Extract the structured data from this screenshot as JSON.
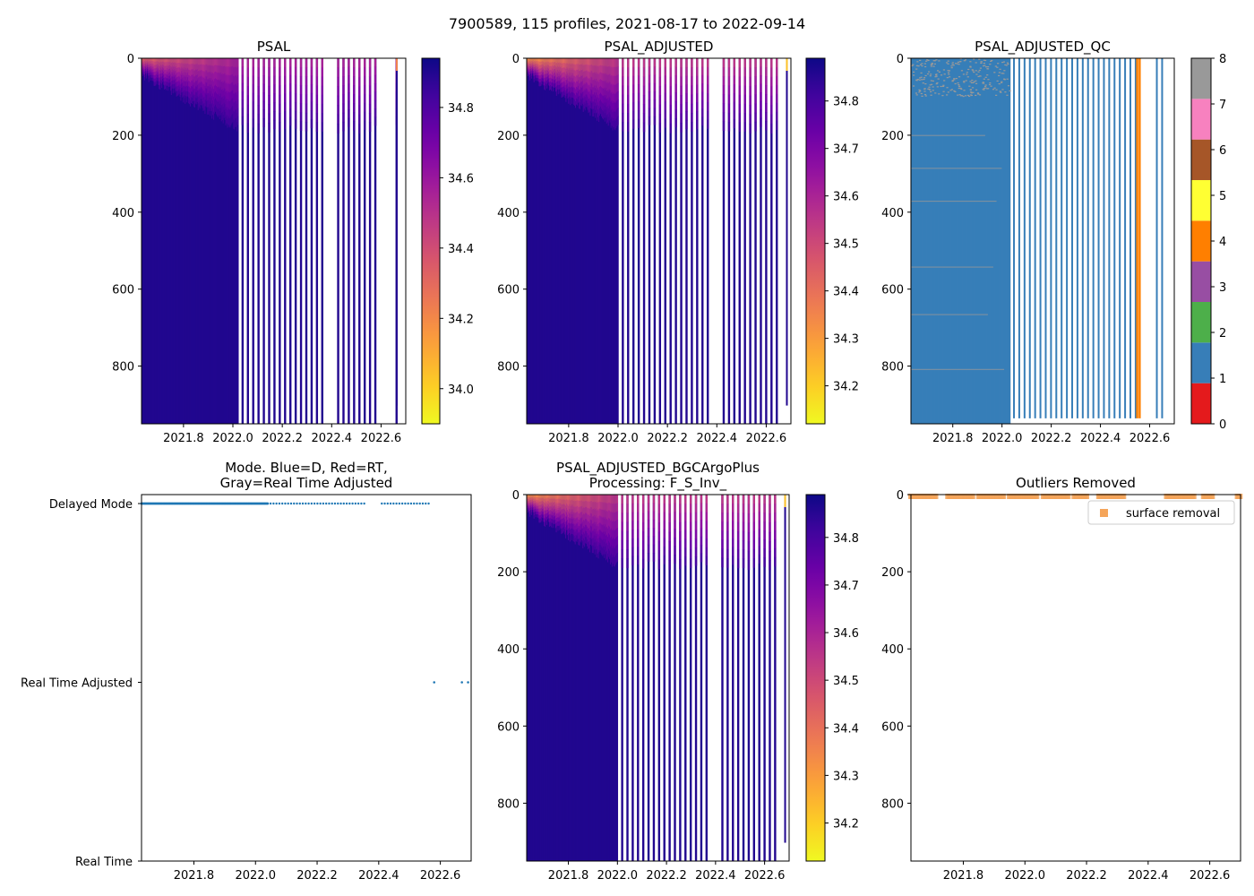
{
  "figure": {
    "suptitle": "7900589, 115 profiles, 2021-08-17 to 2022-09-14"
  },
  "colors": {
    "plasma": [
      "#0d0887",
      "#46039f",
      "#7201a8",
      "#9c179e",
      "#bd3786",
      "#d8576b",
      "#ed7953",
      "#fb9f3a",
      "#fdca26",
      "#f0f921"
    ],
    "qc": [
      "#e41a1c",
      "#377eb8",
      "#4daf4a",
      "#984ea3",
      "#ff7f00",
      "#ffff33",
      "#a65628",
      "#f781bf",
      "#999999"
    ],
    "mode_points": "#1f77b4",
    "outlier_marker": "#f5a55a",
    "qc4_stripe": "#ff7f00"
  },
  "chart_data": [
    {
      "id": "psal",
      "type": "heatmap",
      "title": "PSAL",
      "colormap": "plasma_r",
      "xlim": [
        2021.63,
        2022.7
      ],
      "ylim": [
        950,
        0
      ],
      "xticks": [
        2021.8,
        2022.0,
        2022.2,
        2022.4,
        2022.6
      ],
      "xtick_labels": [
        "2021.8",
        "2022.0",
        "2022.2",
        "2022.4",
        "2022.6"
      ],
      "yticks": [
        0,
        200,
        400,
        600,
        800
      ],
      "ytick_labels": [
        "0",
        "200",
        "400",
        "600",
        "800"
      ],
      "clim": [
        33.9,
        34.94
      ],
      "colorbar_ticks": [
        34.0,
        34.2,
        34.4,
        34.6,
        34.8
      ],
      "colorbar_labels": [
        "34.0",
        "34.2",
        "34.4",
        "34.6",
        "34.8"
      ],
      "dense_until": 2022.02,
      "missing_ranges": [
        [
          2022.36,
          2022.42
        ],
        [
          2022.59,
          2022.65
        ]
      ],
      "shallow_profile_x": 2022.66,
      "surface_values": {
        "early": 34.32,
        "late": 34.55
      },
      "deep_value": 34.9
    },
    {
      "id": "psal_adj",
      "type": "heatmap",
      "title": "PSAL_ADJUSTED",
      "colormap": "plasma_r",
      "xlim": [
        2021.63,
        2022.7
      ],
      "ylim": [
        950,
        0
      ],
      "xticks": [
        2021.8,
        2022.0,
        2022.2,
        2022.4,
        2022.6
      ],
      "xtick_labels": [
        "2021.8",
        "2022.0",
        "2022.2",
        "2022.4",
        "2022.6"
      ],
      "yticks": [
        0,
        200,
        400,
        600,
        800
      ],
      "ytick_labels": [
        "0",
        "200",
        "400",
        "600",
        "800"
      ],
      "clim": [
        34.12,
        34.89
      ],
      "colorbar_ticks": [
        34.2,
        34.3,
        34.4,
        34.5,
        34.6,
        34.7,
        34.8
      ],
      "colorbar_labels": [
        "34.2",
        "34.3",
        "34.4",
        "34.5",
        "34.6",
        "34.7",
        "34.8"
      ],
      "dense_until": 2022.0,
      "missing_ranges": [
        [
          2022.37,
          2022.42
        ]
      ],
      "shallow_profile_x": 2022.68,
      "surface_values": {
        "early": 34.32,
        "late": 34.55
      },
      "deep_value": 34.86
    },
    {
      "id": "psal_qc",
      "type": "heatmap",
      "title": "PSAL_ADJUSTED_QC",
      "colormap": "categorical",
      "xlim": [
        2021.63,
        2022.7
      ],
      "ylim": [
        950,
        0
      ],
      "xticks": [
        2021.8,
        2022.0,
        2022.2,
        2022.4,
        2022.6
      ],
      "xtick_labels": [
        "2021.8",
        "2022.0",
        "2022.2",
        "2022.4",
        "2022.6"
      ],
      "yticks": [
        0,
        200,
        400,
        600,
        800
      ],
      "ytick_labels": [
        "0",
        "200",
        "400",
        "600",
        "800"
      ],
      "clim": [
        0,
        8
      ],
      "colorbar_ticks": [
        0,
        1,
        2,
        3,
        4,
        5,
        6,
        7,
        8
      ],
      "colorbar_labels": [
        "0",
        "1",
        "2",
        "3",
        "4",
        "5",
        "6",
        "7",
        "8"
      ],
      "dense_until": 2022.03,
      "missing_ranges": [
        [
          2022.56,
          2022.62
        ]
      ],
      "dominant_qc": 1,
      "qc4_profiles_x": [
        2022.545,
        2022.555
      ]
    },
    {
      "id": "mode",
      "type": "scatter",
      "title": "Mode. Blue=D, Red=RT,\nGray=Real Time Adjusted",
      "xlim": [
        2021.63,
        2022.7
      ],
      "xticks": [
        2021.8,
        2022.0,
        2022.2,
        2022.4,
        2022.6
      ],
      "xtick_labels": [
        "2021.8",
        "2022.0",
        "2022.2",
        "2022.4",
        "2022.6"
      ],
      "ycategories": [
        "Real Time",
        "Real Time Adjusted",
        "Delayed Mode"
      ],
      "ylim": [
        0,
        2
      ],
      "delayed_dense_until": 2022.04,
      "delayed_sparse_until": 2022.36,
      "delayed_late_range": [
        2022.41,
        2022.57
      ],
      "realtime_adjusted_points": [
        2022.58,
        2022.67,
        2022.69
      ]
    },
    {
      "id": "psal_bgc",
      "type": "heatmap",
      "title": "PSAL_ADJUSTED_BGCArgoPlus\nProcessing: F_S_Inv_",
      "colormap": "plasma_r",
      "xlim": [
        2021.63,
        2022.7
      ],
      "ylim": [
        950,
        0
      ],
      "xticks": [
        2021.8,
        2022.0,
        2022.2,
        2022.4,
        2022.6
      ],
      "xtick_labels": [
        "2021.8",
        "2022.0",
        "2022.2",
        "2022.4",
        "2022.6"
      ],
      "yticks": [
        0,
        200,
        400,
        600,
        800
      ],
      "ytick_labels": [
        "0",
        "200",
        "400",
        "600",
        "800"
      ],
      "clim": [
        34.12,
        34.89
      ],
      "colorbar_ticks": [
        34.2,
        34.3,
        34.4,
        34.5,
        34.6,
        34.7,
        34.8
      ],
      "colorbar_labels": [
        "34.2",
        "34.3",
        "34.4",
        "34.5",
        "34.6",
        "34.7",
        "34.8"
      ],
      "dense_until": 2022.0,
      "missing_ranges": [
        [
          2022.37,
          2022.42
        ]
      ],
      "shallow_profile_x": 2022.68,
      "surface_values": {
        "early": 34.32,
        "late": 34.55
      },
      "deep_value": 34.86
    },
    {
      "id": "outliers",
      "type": "scatter",
      "title": "Outliers Removed",
      "xlim": [
        2021.63,
        2022.7
      ],
      "ylim": [
        950,
        0
      ],
      "xticks": [
        2021.8,
        2022.0,
        2022.2,
        2022.4,
        2022.6
      ],
      "xtick_labels": [
        "2021.8",
        "2022.0",
        "2022.2",
        "2022.4",
        "2022.6"
      ],
      "yticks": [
        0,
        200,
        400,
        600,
        800
      ],
      "ytick_labels": [
        "0",
        "200",
        "400",
        "600",
        "800"
      ],
      "legend": {
        "label": "surface removal",
        "position": "top-right"
      },
      "marker_depth": 2,
      "marker_ranges": [
        [
          2021.63,
          2021.71
        ],
        [
          2021.75,
          2021.83
        ],
        [
          2021.85,
          2021.93
        ],
        [
          2021.95,
          2022.04
        ],
        [
          2022.06,
          2022.14
        ],
        [
          2022.16,
          2022.2
        ],
        [
          2022.24,
          2022.32
        ],
        [
          2022.46,
          2022.55
        ],
        [
          2022.58,
          2022.61
        ],
        [
          2022.69,
          2022.7
        ]
      ]
    }
  ]
}
